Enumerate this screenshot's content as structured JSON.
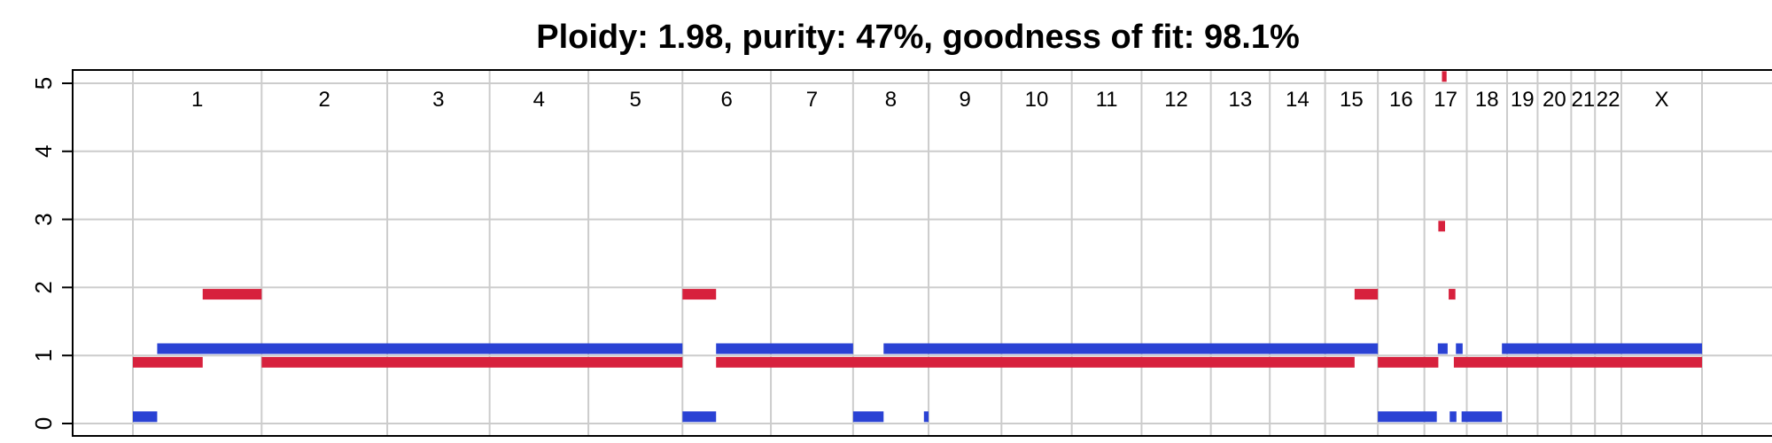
{
  "chart_data": {
    "type": "segment",
    "title": "Ploidy: 1.98, purity: 47%, goodness of fit: 98.1%",
    "ylim": [
      0,
      5
    ],
    "yticks": [
      0,
      1,
      2,
      3,
      4,
      5
    ],
    "grid": true,
    "colors": {
      "major_cn": "#d7213d",
      "minor_cn": "#2a42d4",
      "grid": "#cccccc"
    },
    "xlim": [
      0,
      3250
    ],
    "chromosomes": [
      {
        "label": "1",
        "start": 0,
        "end": 249
      },
      {
        "label": "2",
        "start": 249,
        "end": 492
      },
      {
        "label": "3",
        "start": 492,
        "end": 690
      },
      {
        "label": "4",
        "start": 690,
        "end": 881
      },
      {
        "label": "5",
        "start": 881,
        "end": 1063
      },
      {
        "label": "6",
        "start": 1063,
        "end": 1234
      },
      {
        "label": "7",
        "start": 1234,
        "end": 1393
      },
      {
        "label": "8",
        "start": 1393,
        "end": 1539
      },
      {
        "label": "9",
        "start": 1539,
        "end": 1680
      },
      {
        "label": "10",
        "start": 1680,
        "end": 1816
      },
      {
        "label": "11",
        "start": 1816,
        "end": 1951
      },
      {
        "label": "12",
        "start": 1951,
        "end": 2085
      },
      {
        "label": "13",
        "start": 2085,
        "end": 2199
      },
      {
        "label": "14",
        "start": 2199,
        "end": 2306
      },
      {
        "label": "15",
        "start": 2306,
        "end": 2408
      },
      {
        "label": "16",
        "start": 2408,
        "end": 2498
      },
      {
        "label": "17",
        "start": 2498,
        "end": 2580
      },
      {
        "label": "18",
        "start": 2580,
        "end": 2658
      },
      {
        "label": "19",
        "start": 2658,
        "end": 2717
      },
      {
        "label": "20",
        "start": 2717,
        "end": 2782
      },
      {
        "label": "21",
        "start": 2782,
        "end": 2828
      },
      {
        "label": "22",
        "start": 2828,
        "end": 2879
      },
      {
        "label": "X",
        "start": 2879,
        "end": 3035
      }
    ],
    "series": [
      {
        "key": "major_cn",
        "color": "#d7213d",
        "segments": [
          {
            "start": 0,
            "end": 135,
            "value": 0.9
          },
          {
            "start": 135,
            "end": 249,
            "value": 1.9
          },
          {
            "start": 249,
            "end": 1063,
            "value": 0.9
          },
          {
            "start": 1063,
            "end": 1128,
            "value": 1.9
          },
          {
            "start": 1128,
            "end": 2363,
            "value": 0.9
          },
          {
            "start": 2363,
            "end": 2408,
            "value": 1.9
          },
          {
            "start": 2408,
            "end": 2525,
            "value": 0.9
          },
          {
            "start": 2525,
            "end": 2538,
            "value": 2.9
          },
          {
            "start": 2532,
            "end": 2541,
            "value": 5.1
          },
          {
            "start": 2545,
            "end": 2558,
            "value": 1.9
          },
          {
            "start": 2555,
            "end": 3035,
            "value": 0.9
          }
        ]
      },
      {
        "key": "minor_cn",
        "color": "#2a42d4",
        "segments": [
          {
            "start": 0,
            "end": 47,
            "value": 0.1
          },
          {
            "start": 47,
            "end": 1063,
            "value": 1.1
          },
          {
            "start": 1063,
            "end": 1128,
            "value": 0.1
          },
          {
            "start": 1128,
            "end": 1393,
            "value": 1.1
          },
          {
            "start": 1393,
            "end": 1452,
            "value": 0.1
          },
          {
            "start": 1452,
            "end": 2408,
            "value": 1.1
          },
          {
            "start": 1530,
            "end": 1539,
            "value": 0.1
          },
          {
            "start": 2408,
            "end": 2522,
            "value": 0.1
          },
          {
            "start": 2524,
            "end": 2543,
            "value": 1.1
          },
          {
            "start": 2547,
            "end": 2560,
            "value": 0.1
          },
          {
            "start": 2559,
            "end": 2572,
            "value": 1.1
          },
          {
            "start": 2570,
            "end": 2648,
            "value": 0.1
          },
          {
            "start": 2648,
            "end": 3035,
            "value": 1.1
          }
        ]
      }
    ]
  }
}
